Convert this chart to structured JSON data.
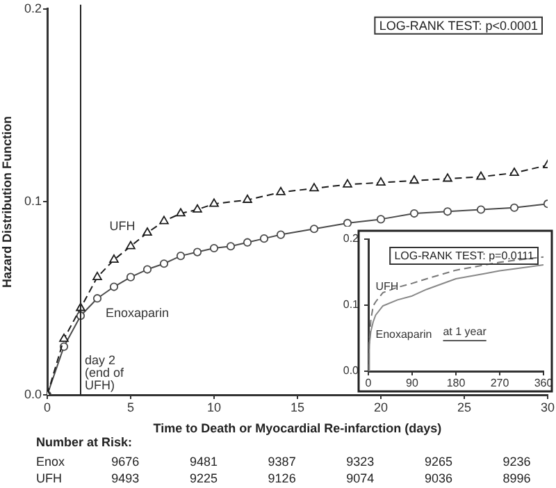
{
  "chart_data": [
    {
      "type": "line",
      "xlabel": "Time to Death or Myocardial Re-infarction (days)",
      "ylabel": "Hazard Distribution Function",
      "xlim": [
        0,
        30
      ],
      "xticks": [
        0,
        5,
        10,
        15,
        20,
        25,
        30
      ],
      "ylim": [
        0,
        0.2
      ],
      "yticks": [
        {
          "value": 0,
          "label": "0.0"
        },
        {
          "value": 0.1,
          "label": "0.1"
        },
        {
          "value": 0.2,
          "label": "0.2"
        }
      ],
      "grid": false,
      "legend": false,
      "ref_lines": [
        {
          "axis": "x",
          "value": 2,
          "label": "day 2\n(end of\nUFH)",
          "color": "#222222",
          "line_style": "solid"
        }
      ],
      "annotations": [
        "LOG-RANK TEST: p<0.0001",
        "Number at Risk:",
        "Enox 9676 9481 9387 9323 9265 9236",
        "UFH 9493 9225 9126 9074 9036 8996"
      ],
      "series": [
        {
          "name": "UFH",
          "color": "#1a1a1a",
          "marker": "triangle",
          "line_style": "dashed",
          "x": [
            0,
            1,
            2,
            3,
            4,
            5,
            6,
            7,
            8,
            9,
            10,
            12,
            14,
            16,
            18,
            20,
            22,
            24,
            26,
            28,
            30
          ],
          "values": [
            0,
            0.029,
            0.045,
            0.061,
            0.07,
            0.077,
            0.084,
            0.09,
            0.094,
            0.096,
            0.099,
            0.101,
            0.105,
            0.107,
            0.109,
            0.11,
            0.111,
            0.112,
            0.113,
            0.115,
            0.119
          ]
        },
        {
          "name": "Enoxaparin",
          "color": "#4a4a4a",
          "marker": "circle",
          "line_style": "solid",
          "x": [
            0,
            1,
            2,
            3,
            4,
            5,
            6,
            7,
            8,
            9,
            10,
            11,
            12,
            13,
            14,
            16,
            18,
            20,
            22,
            24,
            26,
            28,
            30
          ],
          "values": [
            0,
            0.025,
            0.041,
            0.05,
            0.056,
            0.061,
            0.065,
            0.068,
            0.072,
            0.074,
            0.076,
            0.077,
            0.079,
            0.081,
            0.083,
            0.086,
            0.089,
            0.091,
            0.094,
            0.095,
            0.096,
            0.097,
            0.099
          ]
        }
      ]
    },
    {
      "type": "line",
      "xlim": [
        0,
        360
      ],
      "xticks": [
        0,
        90,
        180,
        270,
        360
      ],
      "ylim": [
        0,
        0.2
      ],
      "yticks": [
        {
          "value": 0,
          "label": "0.0"
        },
        {
          "value": 0.1,
          "label": "0.1"
        },
        {
          "value": 0.2,
          "label": "0.2"
        }
      ],
      "grid": false,
      "legend": false,
      "annotations": [
        "LOG-RANK TEST: p=0.0111",
        "at 1 year"
      ],
      "series": [
        {
          "name": "UFH",
          "color": "#777777",
          "marker": "none",
          "line_style": "dashed",
          "x": [
            0,
            2,
            5,
            10,
            15,
            30,
            60,
            90,
            120,
            180,
            240,
            270,
            300,
            360
          ],
          "values": [
            0,
            0.045,
            0.077,
            0.099,
            0.105,
            0.119,
            0.127,
            0.133,
            0.14,
            0.153,
            0.161,
            0.165,
            0.168,
            0.173
          ]
        },
        {
          "name": "Enoxaparin",
          "color": "#888888",
          "marker": "none",
          "line_style": "solid",
          "x": [
            0,
            2,
            5,
            10,
            15,
            30,
            60,
            90,
            120,
            180,
            240,
            270,
            300,
            360
          ],
          "values": [
            0,
            0.04,
            0.06,
            0.075,
            0.085,
            0.099,
            0.108,
            0.114,
            0.124,
            0.14,
            0.148,
            0.152,
            0.155,
            0.161
          ]
        }
      ]
    }
  ]
}
